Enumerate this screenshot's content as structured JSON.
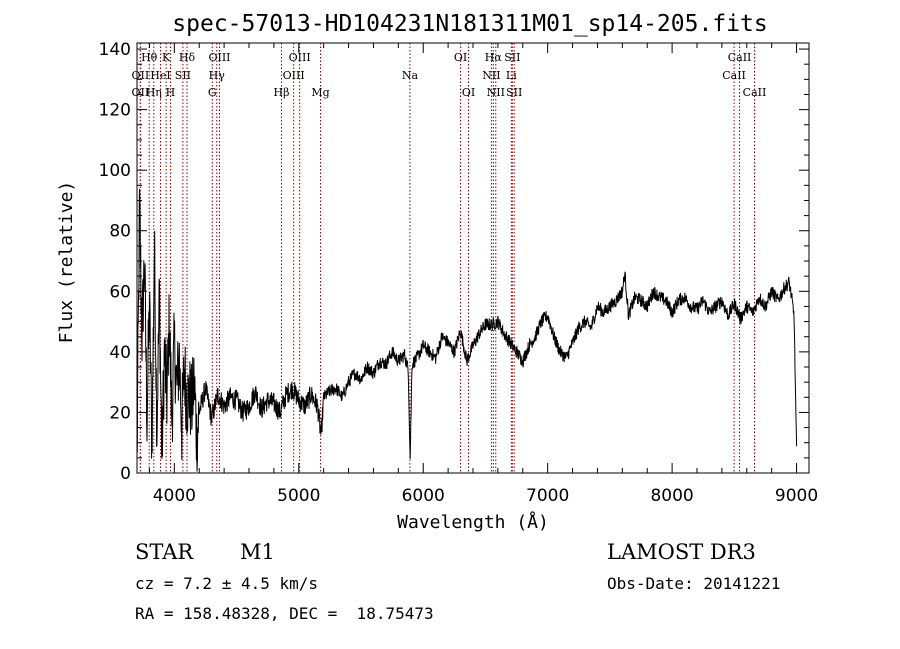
{
  "chart_data": {
    "type": "line",
    "title": "spec-57013-HD104231N181311M01_sp14-205.fits",
    "xlabel": "Wavelength (Å)",
    "ylabel": "Flux (relative)",
    "xlim": [
      3700,
      9100
    ],
    "ylim": [
      0,
      142
    ],
    "xticks": [
      4000,
      5000,
      6000,
      7000,
      8000,
      9000
    ],
    "yticks": [
      0,
      20,
      40,
      60,
      80,
      100,
      120,
      140
    ],
    "series": [
      {
        "name": "flux",
        "x": [
          3700,
          3720,
          3740,
          3760,
          3780,
          3800,
          3820,
          3840,
          3860,
          3880,
          3900,
          3920,
          3940,
          3960,
          3980,
          4000,
          4020,
          4040,
          4060,
          4080,
          4100,
          4120,
          4140,
          4160,
          4180,
          4200,
          4250,
          4300,
          4350,
          4400,
          4450,
          4500,
          4550,
          4600,
          4650,
          4700,
          4750,
          4800,
          4850,
          4900,
          4950,
          5000,
          5050,
          5100,
          5150,
          5180,
          5200,
          5250,
          5300,
          5350,
          5400,
          5450,
          5500,
          5550,
          5600,
          5650,
          5700,
          5750,
          5800,
          5850,
          5880,
          5895,
          5910,
          5950,
          6000,
          6050,
          6100,
          6150,
          6200,
          6250,
          6300,
          6350,
          6400,
          6450,
          6500,
          6560,
          6600,
          6650,
          6700,
          6750,
          6800,
          6850,
          6900,
          6950,
          7000,
          7050,
          7100,
          7150,
          7200,
          7250,
          7300,
          7350,
          7400,
          7450,
          7500,
          7550,
          7600,
          7620,
          7650,
          7700,
          7750,
          7800,
          7850,
          7900,
          7950,
          8000,
          8050,
          8100,
          8150,
          8200,
          8250,
          8300,
          8350,
          8400,
          8450,
          8500,
          8550,
          8600,
          8650,
          8700,
          8750,
          8800,
          8850,
          8900,
          8940,
          8960,
          8980,
          9000
        ],
        "y": [
          2,
          88,
          45,
          70,
          20,
          55,
          10,
          75,
          15,
          60,
          5,
          40,
          25,
          50,
          18,
          42,
          28,
          38,
          15,
          35,
          24,
          26,
          22,
          30,
          12,
          20,
          28,
          18,
          26,
          22,
          25,
          24,
          20,
          22,
          27,
          21,
          24,
          23,
          20,
          26,
          28,
          24,
          22,
          26,
          22,
          12,
          25,
          27,
          28,
          25,
          30,
          33,
          31,
          35,
          33,
          37,
          36,
          40,
          37,
          39,
          34,
          5,
          36,
          38,
          42,
          40,
          38,
          45,
          43,
          40,
          47,
          37,
          42,
          46,
          49,
          49,
          50,
          46,
          43,
          40,
          37,
          42,
          45,
          50,
          52,
          45,
          40,
          38,
          43,
          48,
          50,
          48,
          55,
          53,
          55,
          57,
          60,
          66,
          52,
          58,
          57,
          55,
          60,
          58,
          57,
          53,
          57,
          58,
          55,
          54,
          57,
          53,
          55,
          57,
          52,
          56,
          51,
          55,
          53,
          58,
          55,
          60,
          57,
          61,
          63,
          58,
          52,
          8
        ]
      }
    ],
    "line_marks": [
      {
        "label": "Hθ",
        "wl": 3798,
        "row": 0
      },
      {
        "label": "OII",
        "wl": 3727,
        "row": 1
      },
      {
        "label": "OII",
        "wl": 3727,
        "row": 2
      },
      {
        "label": "Hη",
        "wl": 3835,
        "row": 2
      },
      {
        "label": "HeI",
        "wl": 3889,
        "row": 1
      },
      {
        "label": "K",
        "wl": 3934,
        "row": 0
      },
      {
        "label": "H",
        "wl": 3969,
        "row": 2
      },
      {
        "label": "SII",
        "wl": 4069,
        "row": 1
      },
      {
        "label": "Hδ",
        "wl": 4102,
        "row": 0
      },
      {
        "label": "G",
        "wl": 4305,
        "row": 2
      },
      {
        "label": "Hγ",
        "wl": 4341,
        "row": 1
      },
      {
        "label": "OIII",
        "wl": 4363,
        "row": 0
      },
      {
        "label": "Hβ",
        "wl": 4861,
        "row": 2
      },
      {
        "label": "OIII",
        "wl": 4959,
        "row": 1
      },
      {
        "label": "OIII",
        "wl": 5007,
        "row": 0
      },
      {
        "label": "Mg",
        "wl": 5175,
        "row": 2
      },
      {
        "label": "Na",
        "wl": 5893,
        "row": 1
      },
      {
        "label": "OI",
        "wl": 6300,
        "row": 0
      },
      {
        "label": "OI",
        "wl": 6364,
        "row": 2
      },
      {
        "label": "NII",
        "wl": 6548,
        "row": 1
      },
      {
        "label": "Hα",
        "wl": 6563,
        "row": 0
      },
      {
        "label": "NII",
        "wl": 6583,
        "row": 2
      },
      {
        "label": "SII",
        "wl": 6716,
        "row": 0
      },
      {
        "label": "Li",
        "wl": 6708,
        "row": 1
      },
      {
        "label": "SII",
        "wl": 6731,
        "row": 2
      },
      {
        "label": "CaII",
        "wl": 8498,
        "row": 1
      },
      {
        "label": "CaII",
        "wl": 8542,
        "row": 0
      },
      {
        "label": "CaII",
        "wl": 8662,
        "row": 2
      }
    ]
  },
  "info": {
    "object_class": "STAR",
    "subclass": "M1",
    "survey": "LAMOST DR3",
    "redshift": "cz = 7.2 ± 4.5 km/s",
    "obs_date": "Obs-Date: 20141221",
    "coords": "RA = 158.48328, DEC =  18.75473"
  },
  "colors": {
    "spectrum": "#000000",
    "line_marker": "#8b0000",
    "frame": "#000000"
  }
}
